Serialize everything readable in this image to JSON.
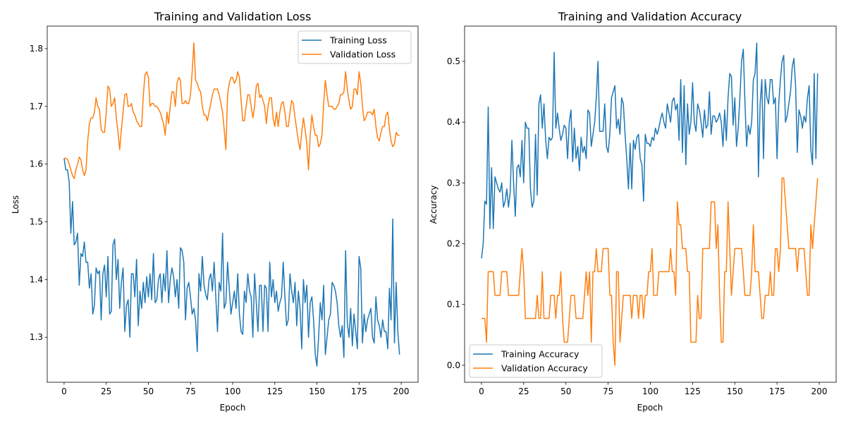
{
  "chart_data": [
    {
      "type": "line",
      "title": "Training and Validation Loss",
      "xlabel": "Epoch",
      "ylabel": "Loss",
      "xlim": [
        -10,
        210
      ],
      "ylim": [
        1.222,
        1.839
      ],
      "xticks": [
        0,
        25,
        50,
        75,
        100,
        125,
        150,
        175,
        200
      ],
      "yticks": [
        1.3,
        1.4,
        1.5,
        1.6,
        1.7,
        1.8
      ],
      "ytick_labels": [
        "1.3",
        "1.4",
        "1.5",
        "1.6",
        "1.7",
        "1.8"
      ],
      "legend": "upper-right",
      "grid": false,
      "series": [
        {
          "name": "Training Loss",
          "color": "#1f77b4",
          "values": [
            1.61,
            1.59,
            1.59,
            1.57,
            1.48,
            1.535,
            1.46,
            1.465,
            1.48,
            1.39,
            1.445,
            1.44,
            1.465,
            1.43,
            1.43,
            1.385,
            1.41,
            1.34,
            1.355,
            1.42,
            1.41,
            1.415,
            1.33,
            1.41,
            1.425,
            1.37,
            1.44,
            1.34,
            1.345,
            1.46,
            1.47,
            1.4,
            1.435,
            1.35,
            1.395,
            1.42,
            1.31,
            1.355,
            1.365,
            1.3,
            1.41,
            1.41,
            1.37,
            1.435,
            1.32,
            1.38,
            1.35,
            1.395,
            1.36,
            1.405,
            1.37,
            1.41,
            1.365,
            1.445,
            1.36,
            1.365,
            1.4,
            1.41,
            1.36,
            1.41,
            1.38,
            1.45,
            1.36,
            1.4,
            1.42,
            1.405,
            1.37,
            1.4,
            1.35,
            1.455,
            1.45,
            1.43,
            1.33,
            1.385,
            1.395,
            1.37,
            1.34,
            1.35,
            1.33,
            1.275,
            1.41,
            1.38,
            1.44,
            1.39,
            1.375,
            1.365,
            1.4,
            1.41,
            1.38,
            1.43,
            1.37,
            1.31,
            1.395,
            1.38,
            1.48,
            1.35,
            1.36,
            1.43,
            1.385,
            1.34,
            1.36,
            1.38,
            1.35,
            1.41,
            1.34,
            1.31,
            1.305,
            1.38,
            1.36,
            1.41,
            1.38,
            1.37,
            1.3,
            1.41,
            1.36,
            1.31,
            1.39,
            1.39,
            1.31,
            1.39,
            1.385,
            1.31,
            1.43,
            1.37,
            1.4,
            1.36,
            1.38,
            1.345,
            1.36,
            1.37,
            1.43,
            1.37,
            1.32,
            1.33,
            1.41,
            1.38,
            1.36,
            1.395,
            1.32,
            1.38,
            1.35,
            1.28,
            1.4,
            1.36,
            1.39,
            1.3,
            1.36,
            1.37,
            1.33,
            1.27,
            1.25,
            1.3,
            1.36,
            1.33,
            1.39,
            1.27,
            1.3,
            1.33,
            1.34,
            1.395,
            1.39,
            1.38,
            1.36,
            1.32,
            1.3,
            1.32,
            1.265,
            1.45,
            1.325,
            1.3,
            1.35,
            1.285,
            1.34,
            1.31,
            1.28,
            1.44,
            1.42,
            1.29,
            1.34,
            1.31,
            1.33,
            1.34,
            1.35,
            1.3,
            1.29,
            1.37,
            1.33,
            1.32,
            1.3,
            1.33,
            1.31,
            1.31,
            1.28,
            1.385,
            1.33,
            1.505,
            1.29,
            1.395,
            1.31,
            1.27
          ]
        },
        {
          "name": "Validation Loss",
          "color": "#ff7f0e",
          "values": [
            1.61,
            1.61,
            1.608,
            1.6,
            1.59,
            1.58,
            1.575,
            1.59,
            1.6,
            1.612,
            1.608,
            1.59,
            1.58,
            1.59,
            1.64,
            1.67,
            1.68,
            1.68,
            1.69,
            1.715,
            1.7,
            1.695,
            1.66,
            1.655,
            1.655,
            1.69,
            1.735,
            1.73,
            1.7,
            1.705,
            1.715,
            1.68,
            1.655,
            1.625,
            1.66,
            1.69,
            1.72,
            1.722,
            1.7,
            1.7,
            1.705,
            1.69,
            1.685,
            1.675,
            1.67,
            1.665,
            1.665,
            1.72,
            1.755,
            1.76,
            1.75,
            1.7,
            1.705,
            1.705,
            1.7,
            1.7,
            1.695,
            1.69,
            1.68,
            1.67,
            1.65,
            1.69,
            1.67,
            1.7,
            1.725,
            1.725,
            1.7,
            1.74,
            1.75,
            1.745,
            1.705,
            1.705,
            1.71,
            1.705,
            1.705,
            1.72,
            1.76,
            1.81,
            1.745,
            1.74,
            1.73,
            1.725,
            1.7,
            1.685,
            1.685,
            1.675,
            1.69,
            1.705,
            1.72,
            1.73,
            1.73,
            1.73,
            1.72,
            1.705,
            1.69,
            1.66,
            1.625,
            1.72,
            1.74,
            1.75,
            1.75,
            1.74,
            1.745,
            1.76,
            1.75,
            1.71,
            1.675,
            1.675,
            1.7,
            1.72,
            1.72,
            1.7,
            1.68,
            1.7,
            1.735,
            1.74,
            1.715,
            1.72,
            1.71,
            1.7,
            1.67,
            1.7,
            1.715,
            1.715,
            1.68,
            1.665,
            1.69,
            1.665,
            1.69,
            1.705,
            1.708,
            1.69,
            1.665,
            1.665,
            1.69,
            1.71,
            1.705,
            1.68,
            1.66,
            1.64,
            1.625,
            1.655,
            1.68,
            1.66,
            1.635,
            1.59,
            1.65,
            1.685,
            1.665,
            1.65,
            1.65,
            1.63,
            1.635,
            1.65,
            1.705,
            1.745,
            1.72,
            1.7,
            1.7,
            1.7,
            1.695,
            1.695,
            1.7,
            1.705,
            1.72,
            1.72,
            1.725,
            1.76,
            1.73,
            1.71,
            1.695,
            1.7,
            1.73,
            1.73,
            1.72,
            1.76,
            1.74,
            1.7,
            1.675,
            1.68,
            1.69,
            1.69,
            1.69,
            1.685,
            1.695,
            1.665,
            1.645,
            1.64,
            1.655,
            1.665,
            1.665,
            1.685,
            1.69,
            1.66,
            1.64,
            1.63,
            1.635,
            1.655,
            1.65,
            1.65
          ]
        }
      ]
    },
    {
      "type": "line",
      "title": "Training and Validation Accuracy",
      "xlabel": "Epoch",
      "ylabel": "Accuracy",
      "xlim": [
        -10,
        210
      ],
      "ylim": [
        -0.028,
        0.558
      ],
      "xticks": [
        0,
        25,
        50,
        75,
        100,
        125,
        150,
        175,
        200
      ],
      "yticks": [
        0.0,
        0.1,
        0.2,
        0.3,
        0.4,
        0.5
      ],
      "ytick_labels": [
        "0.0",
        "0.1",
        "0.2",
        "0.3",
        "0.4",
        "0.5"
      ],
      "legend": "lower-left",
      "grid": false,
      "series": [
        {
          "name": "Training Accuracy",
          "color": "#1f77b4",
          "values": [
            0.176,
            0.2,
            0.27,
            0.265,
            0.425,
            0.225,
            0.325,
            0.225,
            0.31,
            0.3,
            0.29,
            0.285,
            0.3,
            0.26,
            0.27,
            0.29,
            0.26,
            0.285,
            0.37,
            0.3,
            0.245,
            0.325,
            0.33,
            0.31,
            0.37,
            0.3,
            0.4,
            0.39,
            0.39,
            0.29,
            0.26,
            0.27,
            0.38,
            0.28,
            0.43,
            0.445,
            0.39,
            0.43,
            0.37,
            0.34,
            0.375,
            0.37,
            0.375,
            0.515,
            0.39,
            0.415,
            0.39,
            0.37,
            0.38,
            0.395,
            0.39,
            0.34,
            0.4,
            0.42,
            0.335,
            0.39,
            0.34,
            0.36,
            0.32,
            0.375,
            0.35,
            0.36,
            0.34,
            0.42,
            0.415,
            0.36,
            0.38,
            0.4,
            0.44,
            0.5,
            0.385,
            0.385,
            0.385,
            0.43,
            0.36,
            0.35,
            0.38,
            0.44,
            0.45,
            0.46,
            0.39,
            0.405,
            0.38,
            0.44,
            0.43,
            0.38,
            0.34,
            0.29,
            0.365,
            0.29,
            0.37,
            0.355,
            0.375,
            0.38,
            0.34,
            0.33,
            0.27,
            0.38,
            0.365,
            0.365,
            0.36,
            0.375,
            0.37,
            0.39,
            0.38,
            0.39,
            0.405,
            0.415,
            0.4,
            0.39,
            0.43,
            0.415,
            0.4,
            0.435,
            0.44,
            0.42,
            0.43,
            0.37,
            0.47,
            0.35,
            0.46,
            0.33,
            0.43,
            0.38,
            0.4,
            0.465,
            0.4,
            0.385,
            0.43,
            0.42,
            0.4,
            0.375,
            0.42,
            0.39,
            0.395,
            0.45,
            0.38,
            0.41,
            0.41,
            0.4,
            0.405,
            0.415,
            0.4,
            0.36,
            0.42,
            0.37,
            0.44,
            0.48,
            0.475,
            0.395,
            0.44,
            0.36,
            0.39,
            0.44,
            0.5,
            0.52,
            0.435,
            0.36,
            0.395,
            0.38,
            0.4,
            0.47,
            0.48,
            0.53,
            0.31,
            0.43,
            0.47,
            0.34,
            0.47,
            0.44,
            0.43,
            0.47,
            0.47,
            0.43,
            0.44,
            0.34,
            0.43,
            0.47,
            0.5,
            0.51,
            0.4,
            0.41,
            0.43,
            0.45,
            0.49,
            0.505,
            0.46,
            0.35,
            0.42,
            0.41,
            0.39,
            0.41,
            0.4,
            0.44,
            0.46,
            0.355,
            0.33,
            0.48,
            0.34,
            0.48
          ]
        },
        {
          "name": "Validation Accuracy",
          "color": "#ff7f0e",
          "values": [
            0.077,
            0.077,
            0.077,
            0.038,
            0.154,
            0.154,
            0.154,
            0.154,
            0.115,
            0.115,
            0.115,
            0.115,
            0.154,
            0.154,
            0.154,
            0.154,
            0.115,
            0.115,
            0.115,
            0.115,
            0.115,
            0.115,
            0.115,
            0.154,
            0.192,
            0.154,
            0.077,
            0.077,
            0.077,
            0.077,
            0.077,
            0.077,
            0.077,
            0.115,
            0.077,
            0.077,
            0.154,
            0.077,
            0.077,
            0.077,
            0.077,
            0.115,
            0.115,
            0.115,
            0.077,
            0.115,
            0.115,
            0.154,
            0.077,
            0.038,
            0.038,
            0.038,
            0.077,
            0.115,
            0.115,
            0.115,
            0.077,
            0.077,
            0.077,
            0.077,
            0.077,
            0.115,
            0.154,
            0.115,
            0.154,
            0.038,
            0.154,
            0.154,
            0.192,
            0.154,
            0.154,
            0.154,
            0.192,
            0.192,
            0.192,
            0.192,
            0.115,
            0.115,
            0.038,
            0,
            0.154,
            0.154,
            0.038,
            0.077,
            0.115,
            0.115,
            0.115,
            0.115,
            0.115,
            0.077,
            0.115,
            0.115,
            0.115,
            0.077,
            0.115,
            0.115,
            0.077,
            0.115,
            0.115,
            0.154,
            0.154,
            0.192,
            0.115,
            0.115,
            0.115,
            0.154,
            0.154,
            0.154,
            0.154,
            0.154,
            0.154,
            0.154,
            0.192,
            0.154,
            0.154,
            0.115,
            0.269,
            0.231,
            0.231,
            0.192,
            0.192,
            0.192,
            0.154,
            0.154,
            0.038,
            0.038,
            0.038,
            0.038,
            0.115,
            0.077,
            0.077,
            0.192,
            0.192,
            0.192,
            0.192,
            0.192,
            0.269,
            0.269,
            0.269,
            0.192,
            0.231,
            0.115,
            0.038,
            0.038,
            0.154,
            0.154,
            0.269,
            0.192,
            0.115,
            0.154,
            0.192,
            0.192,
            0.192,
            0.192,
            0.192,
            0.154,
            0.115,
            0.115,
            0.115,
            0.115,
            0.154,
            0.231,
            0.154,
            0.154,
            0.154,
            0.115,
            0.077,
            0.077,
            0.115,
            0.115,
            0.115,
            0.154,
            0.115,
            0.115,
            0.192,
            0.192,
            0.154,
            0.192,
            0.308,
            0.308,
            0.269,
            0.231,
            0.192,
            0.192,
            0.192,
            0.192,
            0.192,
            0.154,
            0.192,
            0.192,
            0.192,
            0.192,
            0.154,
            0.115,
            0.115,
            0.231,
            0.192,
            0.231,
            0.269,
            0.308
          ]
        }
      ]
    }
  ]
}
